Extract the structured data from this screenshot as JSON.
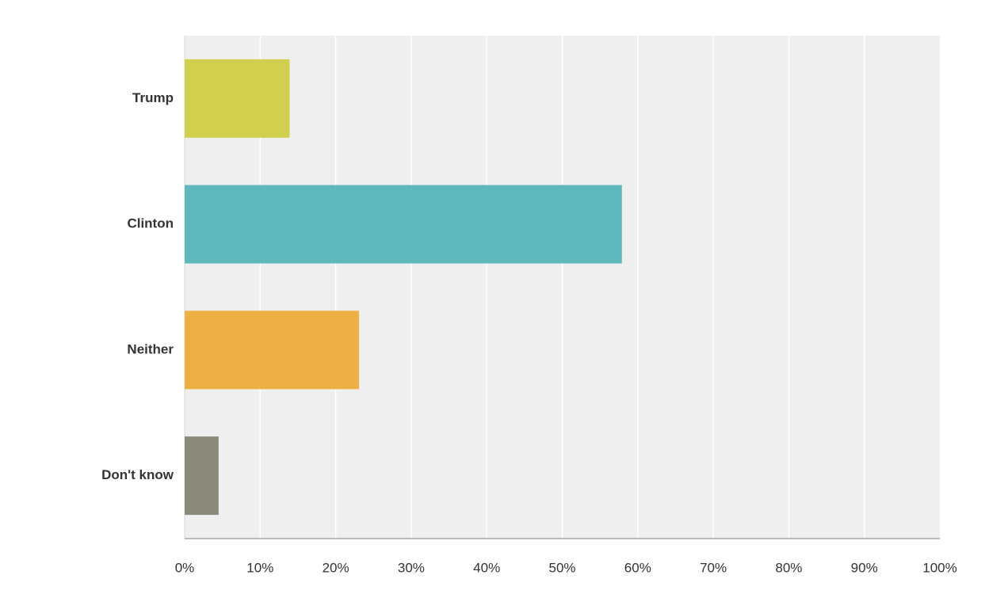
{
  "chart_data": {
    "type": "bar",
    "orientation": "horizontal",
    "categories": [
      "Trump",
      "Clinton",
      "Neither",
      "Don't know"
    ],
    "values": [
      13.9,
      57.9,
      23.1,
      4.5
    ],
    "colors": [
      "#d0d04e",
      "#5fb9bc",
      "#ecb044",
      "#8a8a7a"
    ],
    "xlim": [
      0,
      100
    ],
    "xticks": [
      {
        "value": 0,
        "label": "0%"
      },
      {
        "value": 10,
        "label": "10%"
      },
      {
        "value": 20,
        "label": "20%"
      },
      {
        "value": 30,
        "label": "30%"
      },
      {
        "value": 40,
        "label": "40%"
      },
      {
        "value": 50,
        "label": "50%"
      },
      {
        "value": 60,
        "label": "60%"
      },
      {
        "value": 70,
        "label": "70%"
      },
      {
        "value": 80,
        "label": "80%"
      },
      {
        "value": 90,
        "label": "90%"
      },
      {
        "value": 100,
        "label": "100%"
      }
    ],
    "grid": true
  }
}
